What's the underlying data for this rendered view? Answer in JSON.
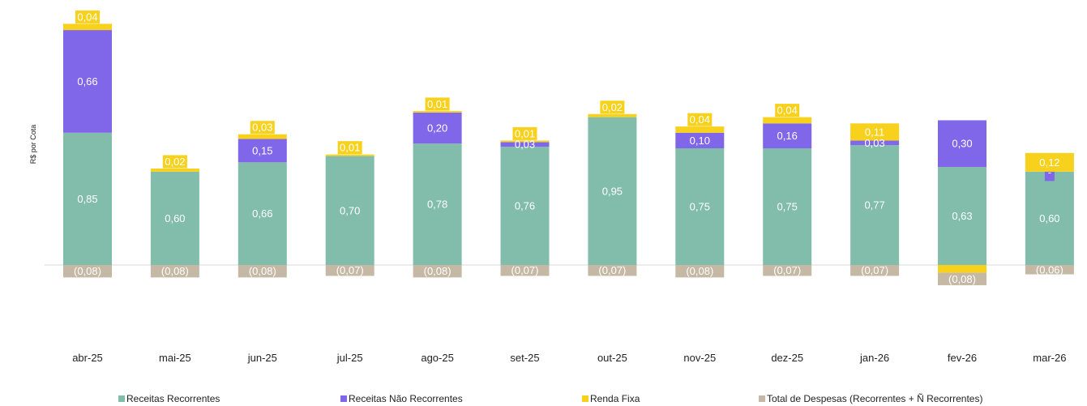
{
  "chart_data": {
    "type": "bar",
    "stacked": true,
    "ylabel": "R$ por Cota",
    "categories": [
      "abr-25",
      "mai-25",
      "jun-25",
      "jul-25",
      "ago-25",
      "set-25",
      "out-25",
      "nov-25",
      "dez-25",
      "jan-26",
      "fev-26",
      "mar-26"
    ],
    "series": [
      {
        "name": "Receitas Recorrentes",
        "color": "#82bdac",
        "values": [
          0.85,
          0.6,
          0.66,
          0.7,
          0.78,
          0.76,
          0.95,
          0.75,
          0.75,
          0.77,
          0.63,
          0.6
        ],
        "labels": [
          "0,85",
          "0,60",
          "0,66",
          "0,70",
          "0,78",
          "0,76",
          "0,95",
          "0,75",
          "0,75",
          "0,77",
          "0,63",
          "0,60"
        ]
      },
      {
        "name": "Receitas Não Recorrentes",
        "color": "#8066e8",
        "values": [
          0.66,
          0,
          0.15,
          0,
          0.2,
          0.03,
          0,
          0.1,
          0.16,
          0.03,
          0.3,
          -0.06
        ],
        "labels": [
          "0,66",
          "",
          "0,15",
          "",
          "0,20",
          "0,03",
          "",
          "0,10",
          "0,16",
          "0,03",
          "0,30",
          "-"
        ]
      },
      {
        "name": "Renda Fixa",
        "color": "#f7d11c",
        "values": [
          0.04,
          0.02,
          0.03,
          0.01,
          0.01,
          0.01,
          0.02,
          0.04,
          0.04,
          0.11,
          -0.05,
          0.12
        ],
        "labels": [
          "0,04",
          "0,02",
          "0,03",
          "0,01",
          "0,01",
          "0,01",
          "0,02",
          "0,04",
          "0,04",
          "0,11",
          "",
          "0,12"
        ]
      },
      {
        "name": "Total de Despesas (Recorrentes + Ñ Recorrentes)",
        "color": "#c5b9a5",
        "values": [
          -0.08,
          -0.08,
          -0.08,
          -0.07,
          -0.08,
          -0.07,
          -0.07,
          -0.08,
          -0.07,
          -0.07,
          -0.08,
          -0.06
        ],
        "labels": [
          "(0,08)",
          "(0,08)",
          "(0,08)",
          "(0,07)",
          "(0,08)",
          "(0,07)",
          "(0,07)",
          "(0,08)",
          "(0,07)",
          "(0,07)",
          "(0,08)",
          "(0,06)"
        ]
      }
    ],
    "legend_position": "bottom",
    "grid": false
  }
}
